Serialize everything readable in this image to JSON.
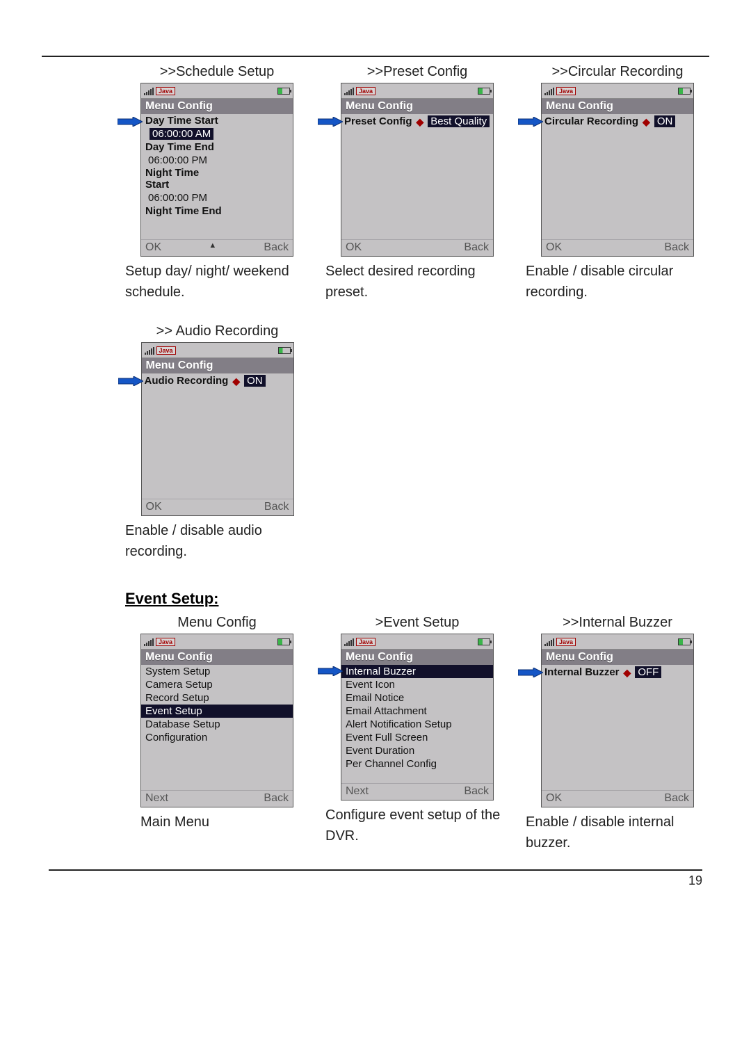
{
  "pageNumber": "19",
  "sections": {
    "recordRow": {
      "schedule": {
        "title": ">>Schedule Setup",
        "header": "Menu Config",
        "lines": [
          {
            "label": "Day Time Start",
            "bold": true
          },
          {
            "value": "06:00:00 AM",
            "hl": true
          },
          {
            "label": "Day Time End",
            "bold": true
          },
          {
            "value": "06:00:00 PM"
          },
          {
            "label": "Night Time Start",
            "bold": true,
            "wrap": true
          },
          {
            "value": "06:00:00 PM"
          },
          {
            "label": "Night Time End",
            "bold": true
          }
        ],
        "leftSoft": "OK",
        "rightSoft": "Back",
        "caption": "Setup day/ night/ weekend schedule.",
        "arrowTop": 56
      },
      "preset": {
        "title": ">>Preset Config",
        "header": "Menu Config",
        "key": "Preset Config",
        "value": "Best Quality",
        "leftSoft": "OK",
        "rightSoft": "Back",
        "caption": "Select desired recording preset.",
        "arrowTop": 56
      },
      "circular": {
        "title": ">>Circular Recording",
        "header": "Menu Config",
        "key": "Circular Recording",
        "value": "ON",
        "leftSoft": "OK",
        "rightSoft": "Back",
        "caption": "Enable / disable circular recording.",
        "arrowTop": 56
      }
    },
    "audio": {
      "title": ">> Audio Recording",
      "header": "Menu Config",
      "key": "Audio Recording",
      "value": "ON",
      "leftSoft": "OK",
      "rightSoft": "Back",
      "caption": "Enable / disable audio recording.",
      "arrowTop": 56
    },
    "eventTitle": "Event Setup:",
    "eventRow": {
      "main": {
        "title": "Menu Config",
        "header": "Menu Config",
        "items": [
          "System Setup",
          "Camera Setup",
          "Record Setup",
          "Event Setup",
          "Database Setup",
          "Configuration"
        ],
        "hlIndex": 3,
        "leftSoft": "Next",
        "rightSoft": "Back",
        "caption": "Main Menu"
      },
      "eventSetup": {
        "title": ">Event Setup",
        "header": "Menu Config",
        "items": [
          "Internal Buzzer",
          "Event Icon",
          "Email Notice",
          "Email Attachment",
          "Alert Notification Setup",
          "Event Full Screen",
          "Event Duration",
          "Per Channel Config"
        ],
        "hlIndex": 0,
        "leftSoft": "Next",
        "rightSoft": "Back",
        "caption": "Configure event setup of the DVR.",
        "arrowTop": 56
      },
      "buzzer": {
        "title": ">>Internal Buzzer",
        "header": "Menu Config",
        "key": "Internal Buzzer",
        "value": "OFF",
        "leftSoft": "OK",
        "rightSoft": "Back",
        "caption": "Enable / disable internal buzzer.",
        "arrowTop": 56
      }
    }
  },
  "colors": {
    "phoneBg": "#c4c2c4",
    "headerBg": "#827e86",
    "hlBg": "#11102a",
    "hlText": "#ffffff",
    "arrowFill": "#1556c6",
    "arrowStroke": "#0b2f73",
    "bullet": "#a00000"
  }
}
